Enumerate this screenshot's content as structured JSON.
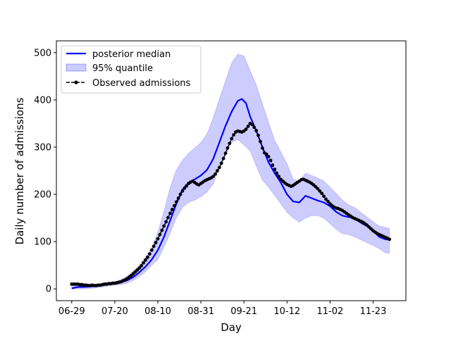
{
  "chart_data": {
    "type": "line",
    "xlabel": "Day",
    "ylabel": "Daily number of admissions",
    "x_ticks": [
      {
        "day": 0,
        "label": "06-29"
      },
      {
        "day": 21,
        "label": "07-20"
      },
      {
        "day": 42,
        "label": "08-10"
      },
      {
        "day": 63,
        "label": "08-31"
      },
      {
        "day": 84,
        "label": "09-21"
      },
      {
        "day": 105,
        "label": "10-12"
      },
      {
        "day": 126,
        "label": "11-02"
      },
      {
        "day": 147,
        "label": "11-23"
      }
    ],
    "xlim": [
      -7.5,
      163
    ],
    "ylim": [
      -25,
      525
    ],
    "y_ticks": [
      0,
      100,
      200,
      300,
      400,
      500
    ],
    "grid": false,
    "legend_position": "top-left",
    "series": [
      {
        "name": "posterior median",
        "kind": "line",
        "color": "#0000ff",
        "points": [
          [
            0,
            1
          ],
          [
            3,
            4
          ],
          [
            6,
            4
          ],
          [
            9,
            5
          ],
          [
            12,
            6
          ],
          [
            15,
            8
          ],
          [
            18,
            10
          ],
          [
            21,
            12
          ],
          [
            24,
            14
          ],
          [
            27,
            18
          ],
          [
            30,
            25
          ],
          [
            33,
            35
          ],
          [
            36,
            47
          ],
          [
            39,
            62
          ],
          [
            42,
            82
          ],
          [
            45,
            110
          ],
          [
            48,
            145
          ],
          [
            51,
            180
          ],
          [
            54,
            210
          ],
          [
            57,
            225
          ],
          [
            60,
            232
          ],
          [
            63,
            240
          ],
          [
            66,
            252
          ],
          [
            69,
            275
          ],
          [
            72,
            310
          ],
          [
            75,
            345
          ],
          [
            78,
            375
          ],
          [
            81,
            398
          ],
          [
            83,
            402
          ],
          [
            85,
            393
          ],
          [
            87,
            365
          ],
          [
            90,
            335
          ],
          [
            93,
            300
          ],
          [
            96,
            268
          ],
          [
            99,
            245
          ],
          [
            102,
            225
          ],
          [
            105,
            200
          ],
          [
            108,
            185
          ],
          [
            111,
            183
          ],
          [
            114,
            197
          ],
          [
            117,
            192
          ],
          [
            120,
            187
          ],
          [
            123,
            183
          ],
          [
            126,
            175
          ],
          [
            129,
            163
          ],
          [
            132,
            155
          ],
          [
            135,
            152
          ],
          [
            138,
            150
          ],
          [
            141,
            140
          ],
          [
            144,
            133
          ],
          [
            147,
            123
          ],
          [
            150,
            110
          ],
          [
            153,
            105
          ],
          [
            155,
            104
          ]
        ]
      },
      {
        "name": "95% quantile",
        "kind": "band",
        "color": "#0000ff",
        "opacity": 0.2,
        "upper": [
          [
            0,
            8
          ],
          [
            6,
            10
          ],
          [
            12,
            10
          ],
          [
            18,
            13
          ],
          [
            21,
            15
          ],
          [
            24,
            20
          ],
          [
            27,
            26
          ],
          [
            30,
            38
          ],
          [
            33,
            50
          ],
          [
            36,
            68
          ],
          [
            39,
            88
          ],
          [
            42,
            120
          ],
          [
            45,
            165
          ],
          [
            48,
            215
          ],
          [
            51,
            252
          ],
          [
            54,
            272
          ],
          [
            57,
            287
          ],
          [
            60,
            298
          ],
          [
            63,
            310
          ],
          [
            66,
            328
          ],
          [
            69,
            362
          ],
          [
            72,
            402
          ],
          [
            75,
            440
          ],
          [
            78,
            478
          ],
          [
            81,
            497
          ],
          [
            84,
            493
          ],
          [
            87,
            462
          ],
          [
            90,
            432
          ],
          [
            93,
            392
          ],
          [
            96,
            352
          ],
          [
            99,
            315
          ],
          [
            102,
            290
          ],
          [
            105,
            265
          ],
          [
            108,
            232
          ],
          [
            111,
            228
          ],
          [
            114,
            245
          ],
          [
            117,
            240
          ],
          [
            120,
            235
          ],
          [
            123,
            228
          ],
          [
            126,
            215
          ],
          [
            129,
            202
          ],
          [
            132,
            188
          ],
          [
            135,
            178
          ],
          [
            138,
            172
          ],
          [
            141,
            162
          ],
          [
            144,
            152
          ],
          [
            147,
            142
          ],
          [
            150,
            133
          ],
          [
            153,
            130
          ],
          [
            155,
            128
          ]
        ],
        "lower": [
          [
            0,
            0
          ],
          [
            6,
            0
          ],
          [
            12,
            2
          ],
          [
            18,
            6
          ],
          [
            21,
            8
          ],
          [
            24,
            9
          ],
          [
            27,
            12
          ],
          [
            30,
            18
          ],
          [
            33,
            26
          ],
          [
            36,
            36
          ],
          [
            39,
            50
          ],
          [
            42,
            62
          ],
          [
            45,
            88
          ],
          [
            48,
            118
          ],
          [
            51,
            150
          ],
          [
            54,
            172
          ],
          [
            57,
            183
          ],
          [
            60,
            188
          ],
          [
            63,
            195
          ],
          [
            66,
            205
          ],
          [
            69,
            222
          ],
          [
            72,
            255
          ],
          [
            75,
            282
          ],
          [
            78,
            310
          ],
          [
            81,
            316
          ],
          [
            84,
            305
          ],
          [
            87,
            292
          ],
          [
            90,
            260
          ],
          [
            93,
            230
          ],
          [
            96,
            215
          ],
          [
            99,
            198
          ],
          [
            102,
            180
          ],
          [
            105,
            162
          ],
          [
            108,
            150
          ],
          [
            111,
            141
          ],
          [
            114,
            150
          ],
          [
            117,
            155
          ],
          [
            120,
            155
          ],
          [
            123,
            150
          ],
          [
            126,
            138
          ],
          [
            129,
            126
          ],
          [
            132,
            117
          ],
          [
            135,
            115
          ],
          [
            138,
            110
          ],
          [
            141,
            104
          ],
          [
            144,
            98
          ],
          [
            147,
            92
          ],
          [
            150,
            85
          ],
          [
            153,
            76
          ],
          [
            155,
            75
          ]
        ]
      },
      {
        "name": "Observed admissions",
        "kind": "dashed-line-markers",
        "color": "#000000",
        "points": [
          [
            0,
            10
          ],
          [
            1,
            10
          ],
          [
            2,
            10
          ],
          [
            3,
            10
          ],
          [
            4,
            9
          ],
          [
            5,
            9
          ],
          [
            6,
            8
          ],
          [
            7,
            8
          ],
          [
            8,
            7
          ],
          [
            9,
            7
          ],
          [
            10,
            8
          ],
          [
            11,
            7
          ],
          [
            12,
            7
          ],
          [
            13,
            8
          ],
          [
            14,
            8
          ],
          [
            15,
            9
          ],
          [
            16,
            10
          ],
          [
            17,
            10
          ],
          [
            18,
            11
          ],
          [
            19,
            11
          ],
          [
            20,
            12
          ],
          [
            21,
            12
          ],
          [
            22,
            13
          ],
          [
            23,
            14
          ],
          [
            24,
            15
          ],
          [
            25,
            17
          ],
          [
            26,
            19
          ],
          [
            27,
            22
          ],
          [
            28,
            25
          ],
          [
            29,
            28
          ],
          [
            30,
            32
          ],
          [
            31,
            36
          ],
          [
            32,
            40
          ],
          [
            33,
            44
          ],
          [
            34,
            49
          ],
          [
            35,
            55
          ],
          [
            36,
            61
          ],
          [
            37,
            67
          ],
          [
            38,
            74
          ],
          [
            39,
            82
          ],
          [
            40,
            90
          ],
          [
            41,
            98
          ],
          [
            42,
            106
          ],
          [
            43,
            115
          ],
          [
            44,
            124
          ],
          [
            45,
            133
          ],
          [
            46,
            142
          ],
          [
            47,
            151
          ],
          [
            48,
            160
          ],
          [
            49,
            168
          ],
          [
            50,
            176
          ],
          [
            51,
            184
          ],
          [
            52,
            192
          ],
          [
            53,
            200
          ],
          [
            54,
            207
          ],
          [
            55,
            213
          ],
          [
            56,
            218
          ],
          [
            57,
            223
          ],
          [
            58,
            226
          ],
          [
            59,
            228
          ],
          [
            60,
            225
          ],
          [
            61,
            222
          ],
          [
            62,
            220
          ],
          [
            63,
            223
          ],
          [
            64,
            226
          ],
          [
            65,
            229
          ],
          [
            66,
            231
          ],
          [
            67,
            233
          ],
          [
            68,
            235
          ],
          [
            69,
            238
          ],
          [
            70,
            243
          ],
          [
            71,
            250
          ],
          [
            72,
            257
          ],
          [
            73,
            266
          ],
          [
            74,
            276
          ],
          [
            75,
            287
          ],
          [
            76,
            298
          ],
          [
            77,
            308
          ],
          [
            78,
            318
          ],
          [
            79,
            326
          ],
          [
            80,
            332
          ],
          [
            81,
            334
          ],
          [
            82,
            333
          ],
          [
            83,
            332
          ],
          [
            84,
            334
          ],
          [
            85,
            338
          ],
          [
            86,
            344
          ],
          [
            87,
            350
          ],
          [
            88,
            348
          ],
          [
            89,
            342
          ],
          [
            90,
            335
          ],
          [
            91,
            325
          ],
          [
            92,
            312
          ],
          [
            93,
            298
          ],
          [
            94,
            288
          ],
          [
            95,
            285
          ],
          [
            96,
            280
          ],
          [
            97,
            272
          ],
          [
            98,
            262
          ],
          [
            99,
            253
          ],
          [
            100,
            245
          ],
          [
            101,
            238
          ],
          [
            102,
            232
          ],
          [
            103,
            228
          ],
          [
            104,
            224
          ],
          [
            105,
            221
          ],
          [
            106,
            219
          ],
          [
            107,
            217
          ],
          [
            108,
            219
          ],
          [
            109,
            222
          ],
          [
            110,
            225
          ],
          [
            111,
            228
          ],
          [
            112,
            231
          ],
          [
            113,
            232
          ],
          [
            114,
            230
          ],
          [
            115,
            228
          ],
          [
            116,
            226
          ],
          [
            117,
            223
          ],
          [
            118,
            220
          ],
          [
            119,
            216
          ],
          [
            120,
            212
          ],
          [
            121,
            207
          ],
          [
            122,
            202
          ],
          [
            123,
            196
          ],
          [
            124,
            190
          ],
          [
            125,
            185
          ],
          [
            126,
            180
          ],
          [
            127,
            176
          ],
          [
            128,
            173
          ],
          [
            129,
            171
          ],
          [
            130,
            170
          ],
          [
            131,
            168
          ],
          [
            132,
            166
          ],
          [
            133,
            163
          ],
          [
            134,
            160
          ],
          [
            135,
            157
          ],
          [
            136,
            154
          ],
          [
            137,
            151
          ],
          [
            138,
            149
          ],
          [
            139,
            147
          ],
          [
            140,
            145
          ],
          [
            141,
            143
          ],
          [
            142,
            141
          ],
          [
            143,
            138
          ],
          [
            144,
            135
          ],
          [
            145,
            131
          ],
          [
            146,
            127
          ],
          [
            147,
            123
          ],
          [
            148,
            120
          ],
          [
            149,
            117
          ],
          [
            150,
            115
          ],
          [
            151,
            113
          ],
          [
            152,
            111
          ],
          [
            153,
            109
          ],
          [
            154,
            107
          ],
          [
            155,
            105
          ]
        ]
      }
    ]
  }
}
